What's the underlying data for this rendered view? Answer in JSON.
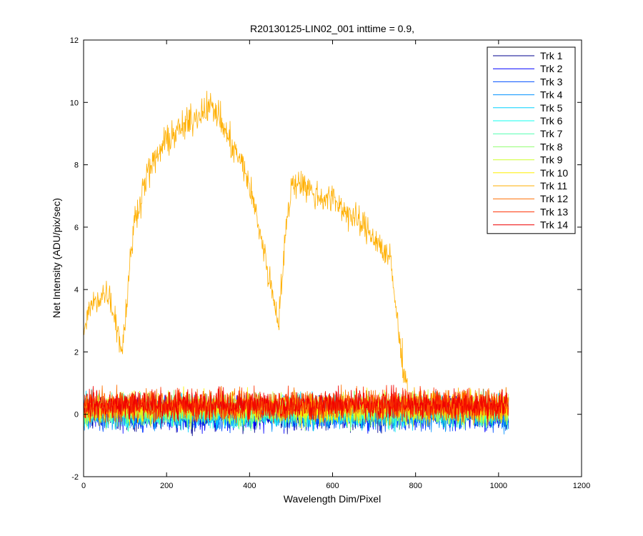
{
  "chart_data": {
    "type": "line",
    "title": "R20130125-LIN02_001 inttime = 0.9,",
    "xlabel": "Wavelength Dim/Pixel",
    "ylabel": "Net Intensity (ADU/pix/sec)",
    "xlim": [
      0,
      1200
    ],
    "ylim": [
      -2,
      12
    ],
    "xticks": [
      0,
      200,
      400,
      600,
      800,
      1000,
      1200
    ],
    "yticks": [
      -2,
      0,
      2,
      4,
      6,
      8,
      10,
      12
    ],
    "grid": false,
    "legend_position": "top-right",
    "series": [
      {
        "name": "Trk 1",
        "color": "#00008f",
        "x": [
          1,
          1024
        ],
        "y": [
          0,
          0
        ],
        "noise": 0.35
      },
      {
        "name": "Trk 2",
        "color": "#0000ff",
        "x": [
          1,
          1024
        ],
        "y": [
          0,
          0
        ],
        "noise": 0.35
      },
      {
        "name": "Trk 3",
        "color": "#0050ff",
        "x": [
          1,
          1024
        ],
        "y": [
          0,
          0
        ],
        "noise": 0.35
      },
      {
        "name": "Trk 4",
        "color": "#0090ff",
        "x": [
          1,
          1024
        ],
        "y": [
          0,
          0
        ],
        "noise": 0.35
      },
      {
        "name": "Trk 5",
        "color": "#00d0ff",
        "x": [
          1,
          1024
        ],
        "y": [
          0.1,
          0.1
        ],
        "noise": 0.35
      },
      {
        "name": "Trk 6",
        "color": "#10ffef",
        "x": [
          1,
          1024
        ],
        "y": [
          0.1,
          0.1
        ],
        "noise": 0.35
      },
      {
        "name": "Trk 7",
        "color": "#50ffaf",
        "x": [
          1,
          1024
        ],
        "y": [
          0.1,
          0.1
        ],
        "noise": 0.35
      },
      {
        "name": "Trk 8",
        "color": "#90ff6f",
        "x": [
          1,
          1024
        ],
        "y": [
          0.15,
          0.15
        ],
        "noise": 0.35
      },
      {
        "name": "Trk 9",
        "color": "#cfff30",
        "x": [
          1,
          1024
        ],
        "y": [
          0.2,
          0.2
        ],
        "noise": 0.35
      },
      {
        "name": "Trk 10",
        "color": "#ffef00",
        "x": [
          1,
          1024
        ],
        "y": [
          0.2,
          0.2
        ],
        "noise": 0.35
      },
      {
        "name": "Trk 11",
        "color": "#ffaf00",
        "x": [
          1,
          15,
          40,
          60,
          80,
          92,
          100,
          120,
          150,
          200,
          250,
          300,
          320,
          350,
          390,
          420,
          450,
          470,
          485,
          500,
          520,
          560,
          600,
          650,
          700,
          740,
          760,
          775,
          785,
          800,
          900,
          1024
        ],
        "y": [
          2.6,
          3.4,
          3.8,
          3.9,
          2.9,
          2.0,
          3.0,
          6.0,
          7.6,
          8.8,
          9.3,
          9.9,
          9.7,
          8.8,
          7.8,
          6.2,
          4.2,
          3.0,
          5.5,
          7.3,
          7.5,
          7.0,
          6.9,
          6.3,
          5.7,
          4.9,
          2.5,
          1.2,
          0.4,
          0.3,
          0.3,
          0.3
        ],
        "noise": 0.35
      },
      {
        "name": "Trk 12",
        "color": "#ff6f00",
        "x": [
          1,
          1024
        ],
        "y": [
          0.3,
          0.3
        ],
        "noise": 0.35
      },
      {
        "name": "Trk 13",
        "color": "#ff2f00",
        "x": [
          1,
          1024
        ],
        "y": [
          0.3,
          0.3
        ],
        "noise": 0.35
      },
      {
        "name": "Trk 14",
        "color": "#ef0000",
        "x": [
          1,
          1024
        ],
        "y": [
          0.3,
          0.3
        ],
        "noise": 0.35
      }
    ]
  }
}
